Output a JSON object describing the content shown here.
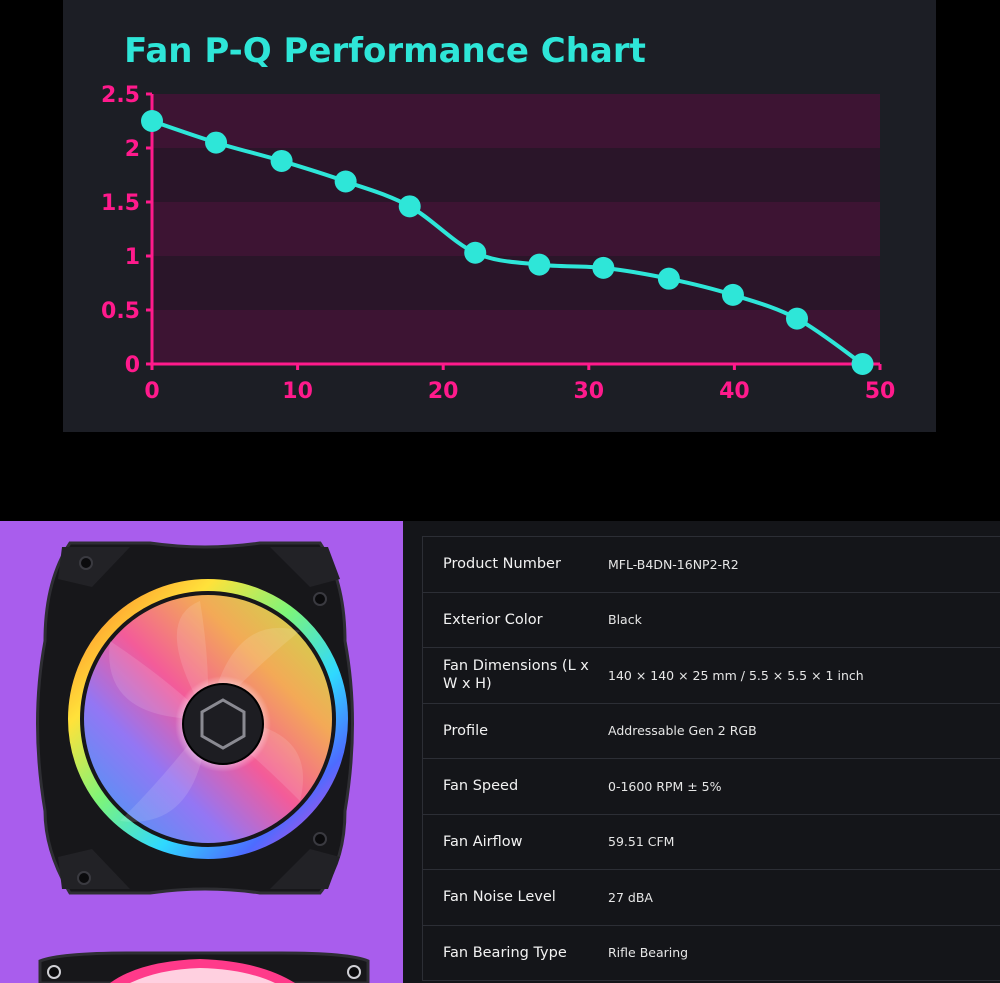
{
  "chart_data": {
    "type": "line",
    "title": "Fan P-Q Performance Chart",
    "xlabel": "",
    "ylabel": "",
    "xlim": [
      0,
      50
    ],
    "ylim": [
      0,
      2.5
    ],
    "x_ticks": [
      "0",
      "10",
      "20",
      "30",
      "40",
      "50"
    ],
    "y_ticks": [
      "0",
      "0.5",
      "1",
      "1.5",
      "2",
      "2.5"
    ],
    "grid": "horizontal bands",
    "series": [
      {
        "x": [
          0,
          4.4,
          8.9,
          13.3,
          17.7,
          22.2,
          26.6,
          31.0,
          35.5,
          39.9,
          44.3,
          48.8
        ],
        "y": [
          2.25,
          2.05,
          1.88,
          1.69,
          1.46,
          1.03,
          0.92,
          0.89,
          0.79,
          0.64,
          0.42,
          0.0
        ]
      }
    ],
    "colors": {
      "line": "#2ee6d8",
      "axis": "#ff1a8c",
      "title": "#2ee6d8",
      "band": "#3d1433",
      "band_alt": "#2a1529"
    }
  },
  "product_image": {
    "icon": "rgb-case-fan",
    "logo": "cooler-master-hub-logo"
  },
  "specs": [
    {
      "label": "Product Number",
      "value": "MFL-B4DN-16NP2-R2"
    },
    {
      "label": "Exterior Color",
      "value": "Black"
    },
    {
      "label": "Fan Dimensions (L x W x H)",
      "value": "140 × 140 × 25 mm / 5.5 × 5.5 × 1 inch"
    },
    {
      "label": "Profile",
      "value": "Addressable Gen 2 RGB"
    },
    {
      "label": "Fan Speed",
      "value": "0-1600 RPM ± 5%"
    },
    {
      "label": "Fan Airflow",
      "value": "59.51 CFM"
    },
    {
      "label": "Fan Noise Level",
      "value": "27 dBA"
    },
    {
      "label": "Fan Bearing Type",
      "value": "Rifle Bearing"
    }
  ]
}
